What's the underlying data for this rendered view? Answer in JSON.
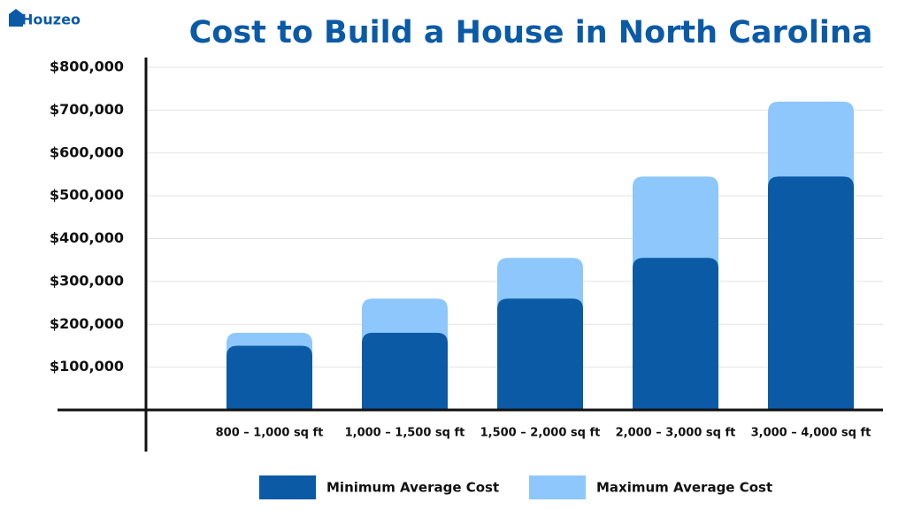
{
  "brand": "Houzeo",
  "chart_data": {
    "type": "bar",
    "title": "Cost to Build a House in North Carolina",
    "categories": [
      "800 – 1,000 sq ft",
      "1,000 – 1,500 sq ft",
      "1,500 – 2,000 sq ft",
      "2,000 – 3,000 sq ft",
      "3,000 – 4,000 sq ft"
    ],
    "series": [
      {
        "name": "Minimum Average Cost",
        "color": "#0b5aa6",
        "values": [
          150000,
          180000,
          260000,
          355000,
          545000
        ]
      },
      {
        "name": "Maximum Average Cost",
        "color": "#8ec7fb",
        "values": [
          180000,
          260000,
          355000,
          545000,
          720000
        ]
      }
    ],
    "overlay": true,
    "ylim": [
      0,
      800000
    ],
    "yticks": [
      {
        "value": 100000,
        "label": "$100,000"
      },
      {
        "value": 200000,
        "label": "$200,000"
      },
      {
        "value": 300000,
        "label": "$300,000"
      },
      {
        "value": 400000,
        "label": "$400,000"
      },
      {
        "value": 500000,
        "label": "$500,000"
      },
      {
        "value": 600000,
        "label": "$600,000"
      },
      {
        "value": 700000,
        "label": "$700,000"
      },
      {
        "value": 800000,
        "label": "$800,000"
      }
    ],
    "grid": true
  }
}
